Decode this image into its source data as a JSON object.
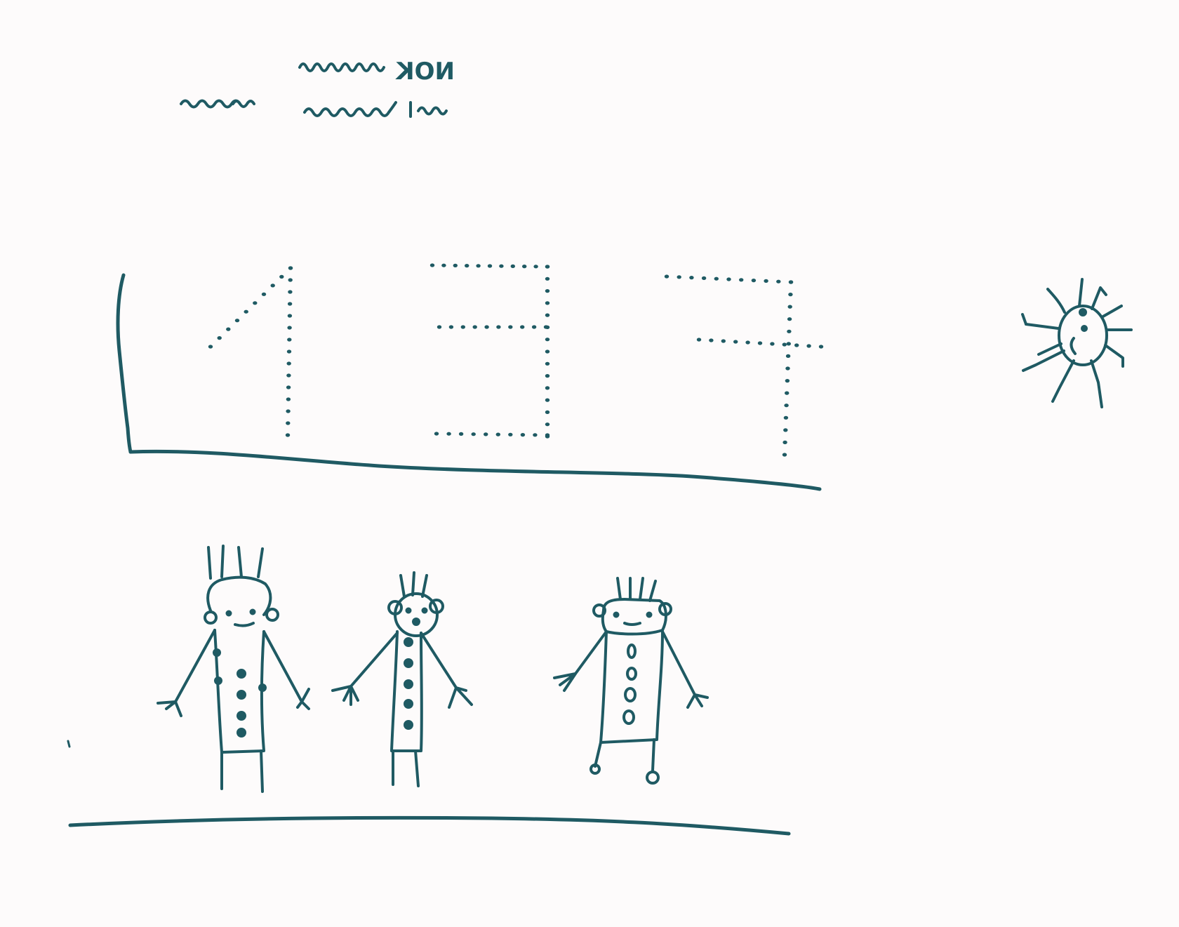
{
  "page": {
    "kind": "child-drawing",
    "ink_color": "#1f5a63",
    "paper_color": "#fdfbfb"
  },
  "header": {
    "line1": "NOK"
  },
  "figures": {
    "digits": [
      "1",
      "3",
      "7"
    ],
    "people_count": 3
  }
}
